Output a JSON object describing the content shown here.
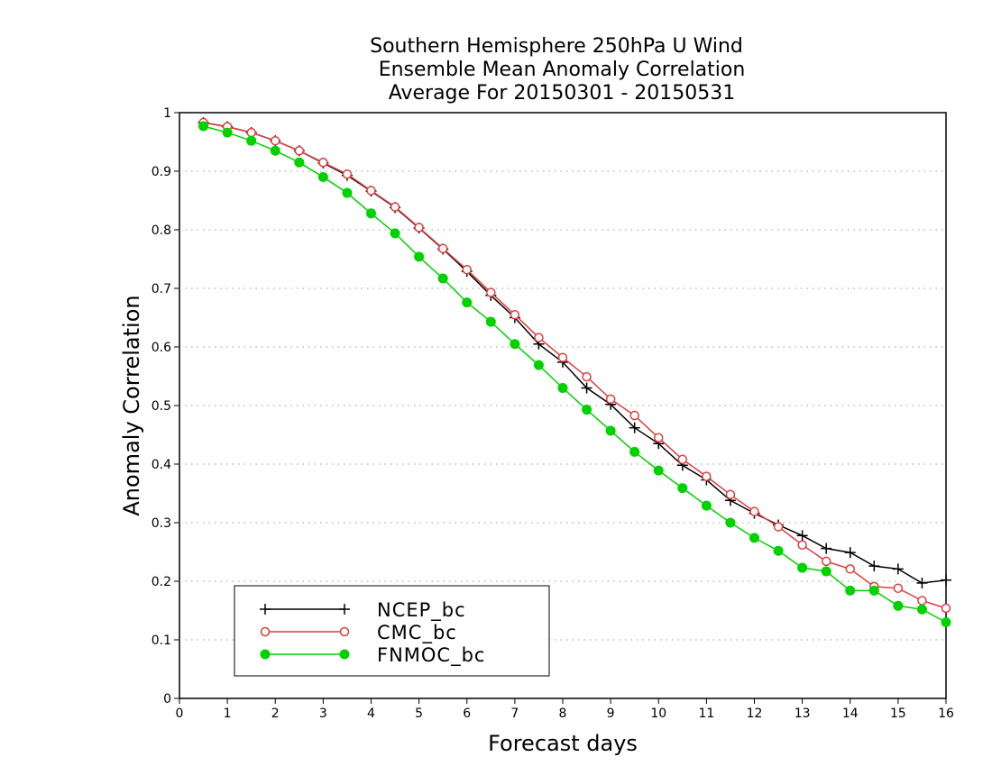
{
  "chart_data": {
    "type": "line",
    "title": [
      "Southern Hemisphere 250hPa U Wind",
      "Ensemble Mean Anomaly Correlation",
      "Average For 20150301 - 20150531"
    ],
    "xlabel": "Forecast days",
    "ylabel": "Anomaly Correlation",
    "xlim": [
      0,
      16
    ],
    "ylim": [
      0,
      1
    ],
    "xticks": [
      "0",
      "1",
      "2",
      "3",
      "4",
      "5",
      "6",
      "7",
      "8",
      "9",
      "10",
      "11",
      "12",
      "13",
      "14",
      "15",
      "16"
    ],
    "yticks": [
      "0",
      "0.1",
      "0.2",
      "0.3",
      "0.4",
      "0.5",
      "0.6",
      "0.7",
      "0.8",
      "0.9",
      "1"
    ],
    "grid": "horizontal-dotted",
    "legend_position": "bottom-left",
    "x": [
      0.5,
      1,
      1.5,
      2,
      2.5,
      3,
      3.5,
      4,
      4.5,
      5,
      5.5,
      6,
      6.5,
      7,
      7.5,
      8,
      8.5,
      9,
      9.5,
      10,
      10.5,
      11,
      11.5,
      12,
      12.5,
      13,
      13.5,
      14,
      14.5,
      15,
      15.5,
      16
    ],
    "series": [
      {
        "name": "NCEP_bc",
        "color": "#000000",
        "marker": "plus",
        "values": [
          0.983,
          0.976,
          0.966,
          0.952,
          0.935,
          0.914,
          0.893,
          0.866,
          0.838,
          0.803,
          0.767,
          0.729,
          0.688,
          0.65,
          0.605,
          0.574,
          0.53,
          0.502,
          0.462,
          0.435,
          0.398,
          0.373,
          0.338,
          0.316,
          0.296,
          0.278,
          0.256,
          0.249,
          0.226,
          0.221,
          0.197,
          0.202
        ]
      },
      {
        "name": "CMC_bc",
        "color": "#e03c3c",
        "marker": "open-circle",
        "values": [
          0.983,
          0.976,
          0.966,
          0.952,
          0.935,
          0.915,
          0.895,
          0.867,
          0.839,
          0.804,
          0.768,
          0.732,
          0.693,
          0.655,
          0.616,
          0.582,
          0.549,
          0.511,
          0.483,
          0.445,
          0.408,
          0.379,
          0.348,
          0.319,
          0.293,
          0.262,
          0.234,
          0.221,
          0.191,
          0.188,
          0.167,
          0.154
        ]
      },
      {
        "name": "FNMOC_bc",
        "color": "#00d200",
        "marker": "filled-circle",
        "values": [
          0.977,
          0.966,
          0.952,
          0.935,
          0.915,
          0.89,
          0.863,
          0.828,
          0.794,
          0.754,
          0.717,
          0.676,
          0.643,
          0.605,
          0.569,
          0.53,
          0.493,
          0.457,
          0.421,
          0.389,
          0.359,
          0.329,
          0.3,
          0.274,
          0.252,
          0.223,
          0.217,
          0.184,
          0.184,
          0.158,
          0.152,
          0.13
        ]
      }
    ]
  }
}
